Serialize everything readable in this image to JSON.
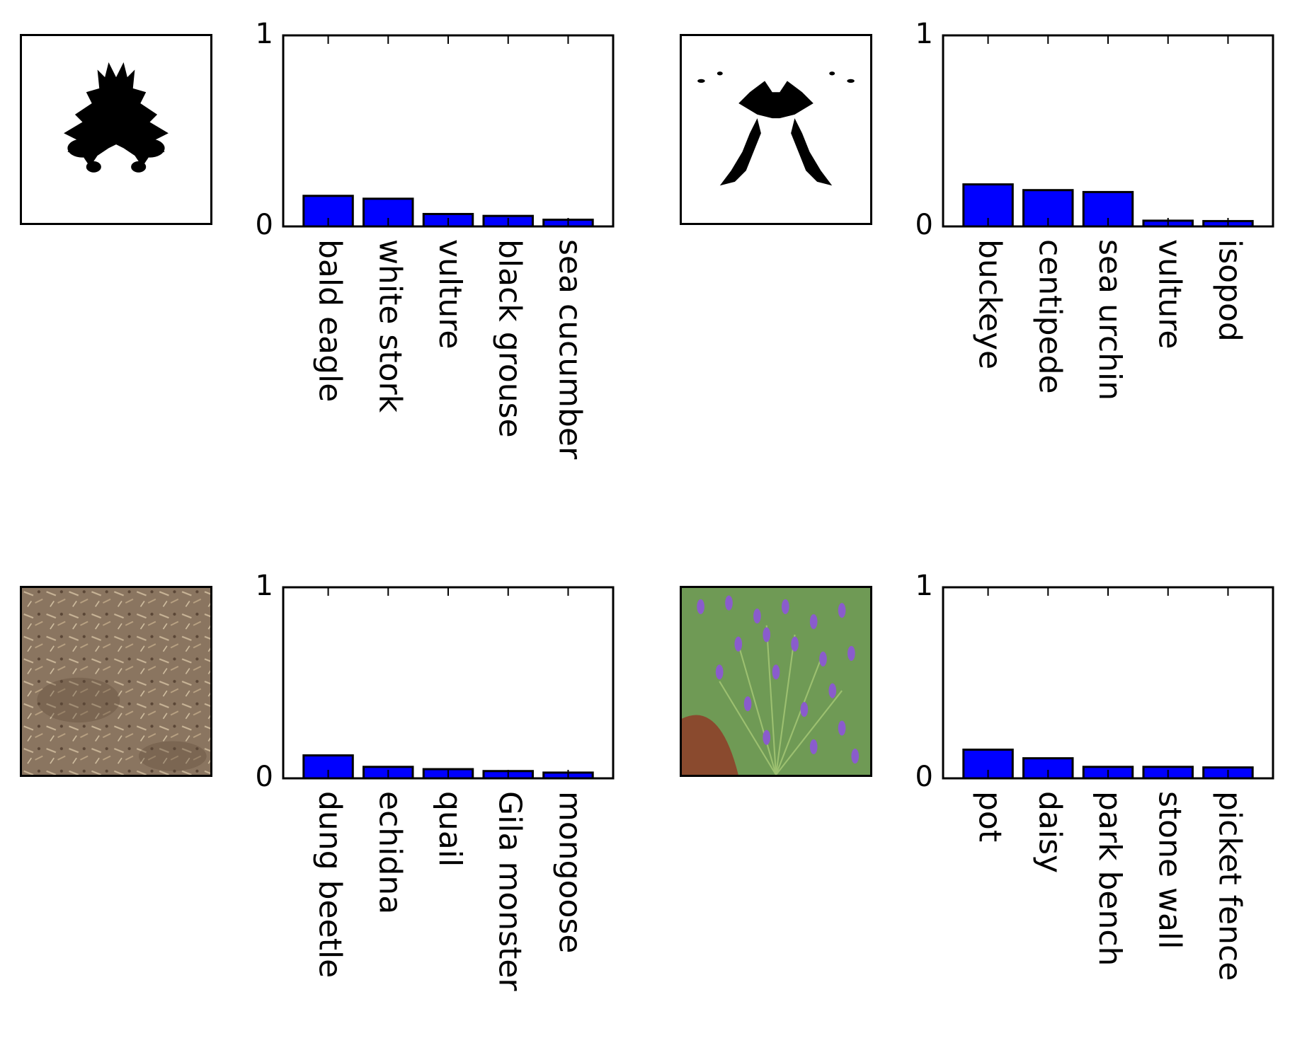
{
  "colors": {
    "bar": "#0000ff",
    "axis": "#000000"
  },
  "panels": [
    {
      "image_icon": "inkblot-image",
      "chart_data": {
        "type": "bar",
        "categories": [
          "bald eagle",
          "white stork",
          "vulture",
          "black grouse",
          "sea cucumber"
        ],
        "values": [
          0.16,
          0.145,
          0.065,
          0.055,
          0.035
        ],
        "ylim": [
          0,
          1
        ],
        "yticks": [
          "0",
          "1"
        ],
        "grid": false
      }
    },
    {
      "image_icon": "inkblot-image",
      "chart_data": {
        "type": "bar",
        "categories": [
          "buckeye",
          "centipede",
          "sea urchin",
          "vulture",
          "isopod"
        ],
        "values": [
          0.22,
          0.19,
          0.18,
          0.03,
          0.028
        ],
        "ylim": [
          0,
          1
        ],
        "yticks": [
          "0",
          "1"
        ],
        "grid": false
      }
    },
    {
      "image_icon": "soil-mulch-photo",
      "chart_data": {
        "type": "bar",
        "categories": [
          "dung beetle",
          "echidna",
          "quail",
          "Gila monster",
          "mongoose"
        ],
        "values": [
          0.12,
          0.06,
          0.048,
          0.038,
          0.03
        ],
        "ylim": [
          0,
          1
        ],
        "yticks": [
          "0",
          "1"
        ],
        "grid": false
      }
    },
    {
      "image_icon": "lavender-photo",
      "chart_data": {
        "type": "bar",
        "categories": [
          "pot",
          "daisy",
          "park bench",
          "stone wall",
          "picket fence"
        ],
        "values": [
          0.15,
          0.105,
          0.06,
          0.06,
          0.057
        ],
        "ylim": [
          0,
          1
        ],
        "yticks": [
          "0",
          "1"
        ],
        "grid": false
      }
    }
  ]
}
